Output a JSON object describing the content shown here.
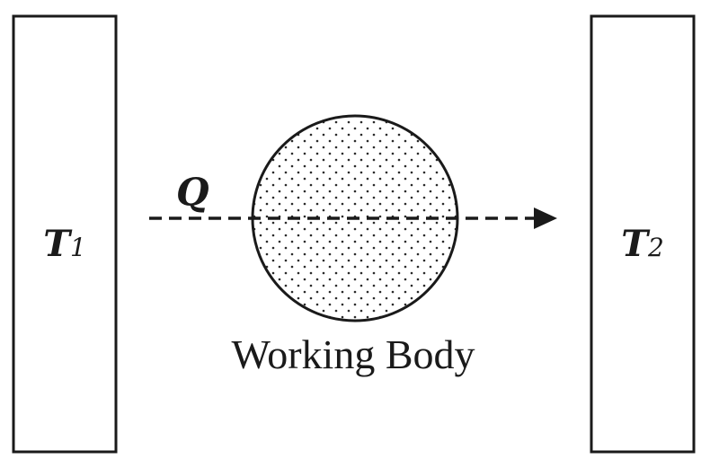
{
  "hot_reservoir": {
    "symbol": "T",
    "subscript": "1"
  },
  "cold_reservoir": {
    "symbol": "T",
    "subscript": "2"
  },
  "heat_flow": {
    "label": "Q",
    "direction": "left-to-right"
  },
  "working_body": {
    "label": "Working Body",
    "fill_pattern": "dotted"
  },
  "colors": {
    "ink": "#1a1a1a",
    "background": "#ffffff"
  }
}
